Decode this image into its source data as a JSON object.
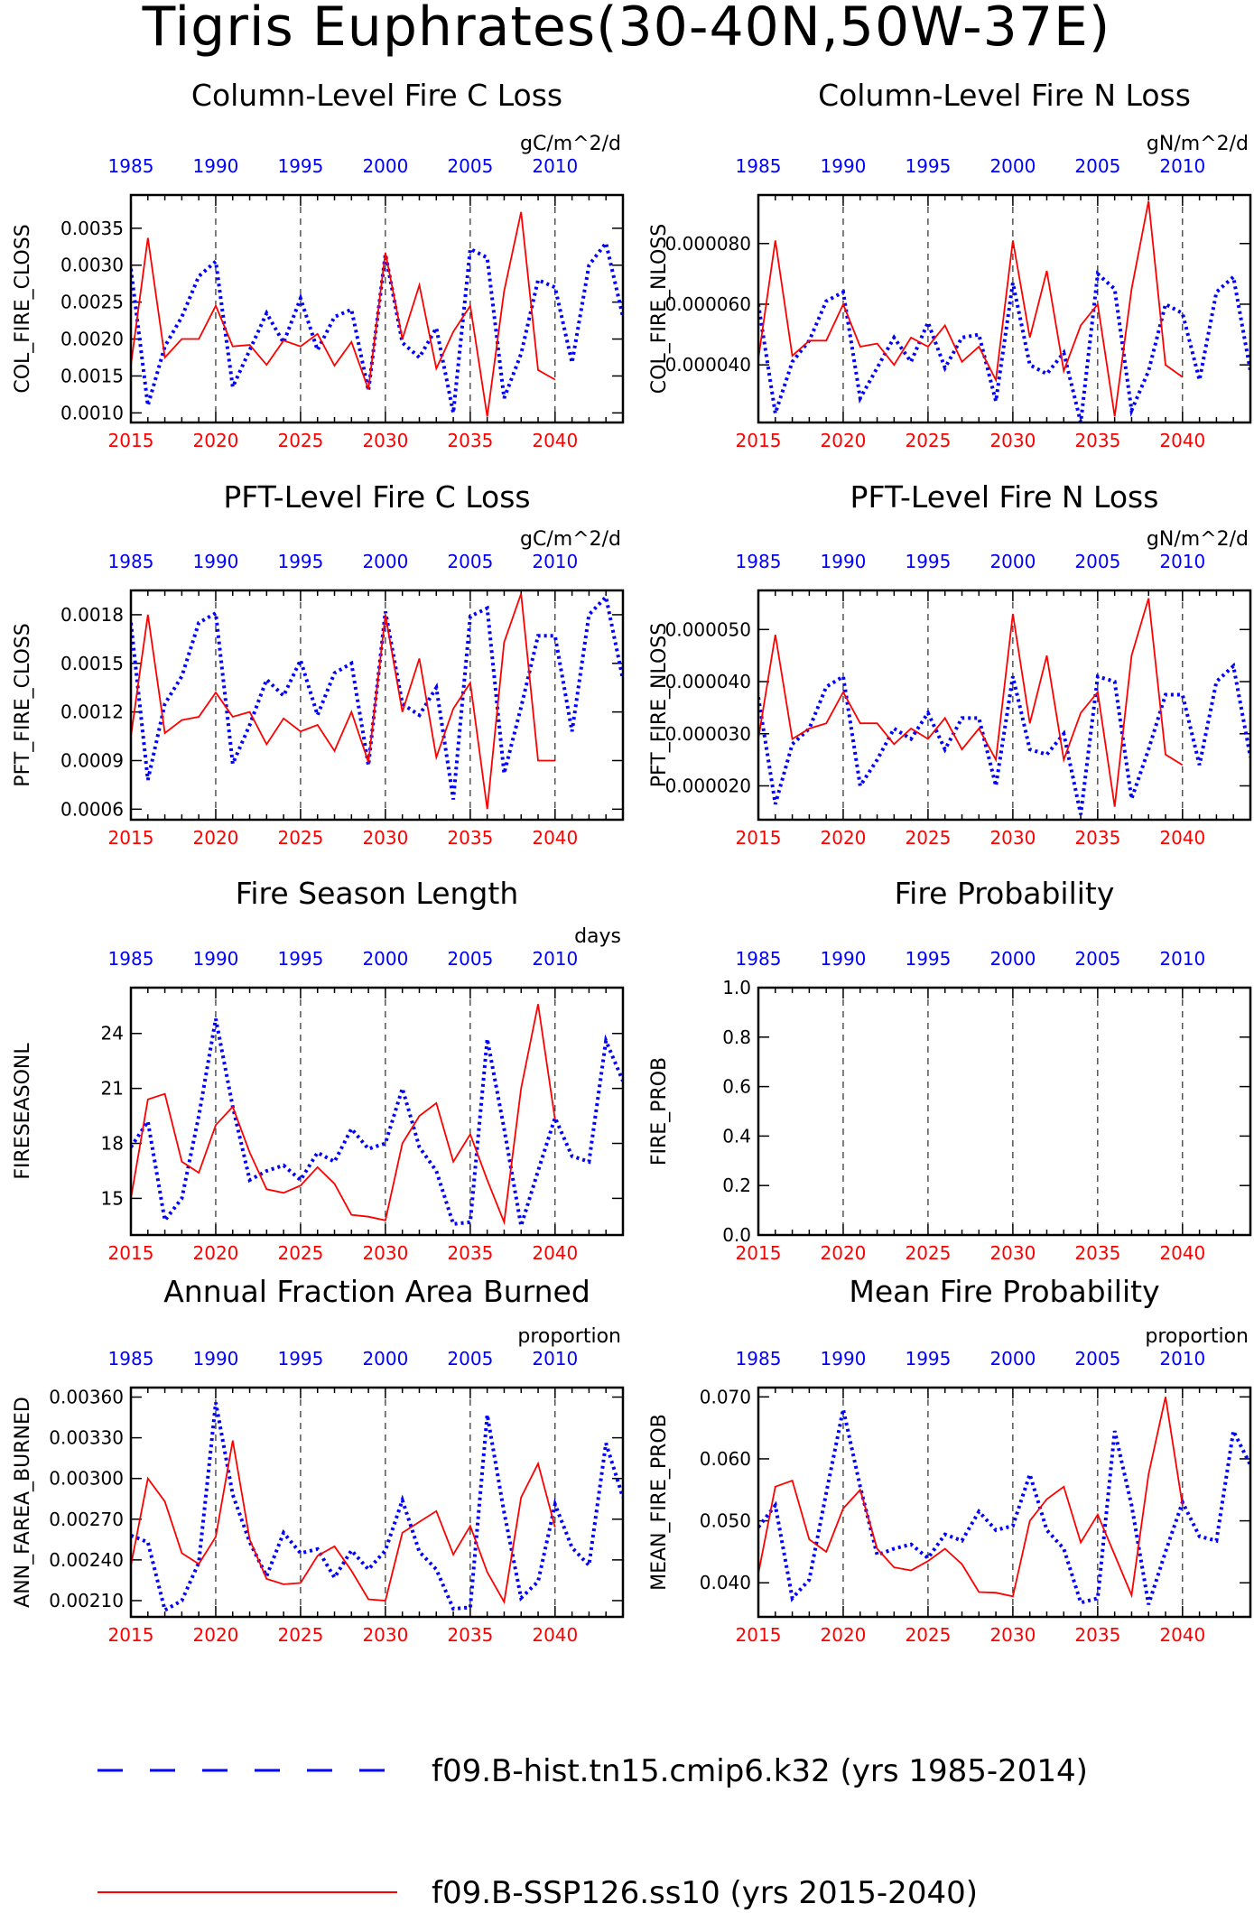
{
  "title": "Tigris Euphrates(30-40N,50W-37E)",
  "colors": {
    "hist": "#0000ff",
    "ssp": "#ff0000",
    "axis": "#000000"
  },
  "top_axis": {
    "ticks": [
      "1985",
      "1990",
      "1995",
      "2000",
      "2005",
      "2010"
    ]
  },
  "bottom_axis": {
    "ticks": [
      "2015",
      "2020",
      "2025",
      "2030",
      "2035",
      "2040"
    ]
  },
  "legend": [
    {
      "name": "f09.B-hist.tn15.cmip6.k32 (yrs 1985-2014)",
      "color": "#0000ff",
      "style": "dashed"
    },
    {
      "name": "f09.B-SSP126.ss10 (yrs 2015-2040)",
      "color": "#ff0000",
      "style": "solid"
    }
  ],
  "chart_data": [
    {
      "type": "line",
      "title": "Column-Level Fire C Loss",
      "ylabel": "COL_FIRE_CLOSS",
      "units": "gC/m^2/d",
      "ylim": [
        0.00087,
        0.00395
      ],
      "yticks": [
        "0.0010",
        "0.0015",
        "0.0020",
        "0.0025",
        "0.0030",
        "0.0035"
      ],
      "ytick_values": [
        0.001,
        0.0015,
        0.002,
        0.0025,
        0.003,
        0.0035
      ],
      "series": [
        {
          "name": "f09.B-hist.tn15.cmip6.k32 (yrs 1985-2014)",
          "x_start": 1985,
          "values": [
            0.00295,
            0.0011,
            0.0019,
            0.0023,
            0.00285,
            0.00305,
            0.00135,
            0.00185,
            0.00235,
            0.00195,
            0.00255,
            0.00185,
            0.0023,
            0.0024,
            0.0013,
            0.00315,
            0.00195,
            0.00175,
            0.00215,
            0.001,
            0.00322,
            0.0031,
            0.0012,
            0.0018,
            0.0028,
            0.0027,
            0.00168,
            0.003,
            0.0033,
            0.0023
          ]
        },
        {
          "name": "f09.B-SSP126.ss10 (yrs 2015-2040)",
          "x_start": 2015,
          "values": [
            0.00165,
            0.00337,
            0.00175,
            0.002,
            0.002,
            0.00245,
            0.0019,
            0.00192,
            0.00165,
            0.00198,
            0.0019,
            0.00207,
            0.00164,
            0.00196,
            0.00132,
            0.00317,
            0.002,
            0.00273,
            0.0016,
            0.0021,
            0.00245,
            0.00095,
            0.00265,
            0.00372,
            0.00158,
            0.00145
          ]
        }
      ]
    },
    {
      "type": "line",
      "title": "Column-Level Fire N Loss",
      "ylabel": "COL_FIRE_NLOSS",
      "units": "gN/m^2/d",
      "ylim": [
        2.1e-05,
        9.6e-05
      ],
      "yticks": [
        "0.000040",
        "0.000060",
        "0.000080"
      ],
      "ytick_values": [
        4e-05,
        6e-05,
        8e-05
      ],
      "series": [
        {
          "name": "f09.B-hist.tn15.cmip6.k32 (yrs 1985-2014)",
          "x_start": 1985,
          "values": [
            6e-05,
            2.4e-05,
            4.1e-05,
            4.8e-05,
            6.1e-05,
            6.4e-05,
            2.9e-05,
            3.9e-05,
            4.9e-05,
            4.1e-05,
            5.4e-05,
            3.9e-05,
            4.9e-05,
            5e-05,
            2.8e-05,
            6.7e-05,
            4e-05,
            3.7e-05,
            4.4e-05,
            2.1e-05,
            7e-05,
            6.5e-05,
            2.5e-05,
            3.8e-05,
            6e-05,
            5.7e-05,
            3.5e-05,
            6.4e-05,
            6.9e-05,
            3.8e-05
          ]
        },
        {
          "name": "f09.B-SSP126.ss10 (yrs 2015-2040)",
          "x_start": 2015,
          "values": [
            4.2e-05,
            8.1e-05,
            4.3e-05,
            4.8e-05,
            4.8e-05,
            6e-05,
            4.6e-05,
            4.7e-05,
            4e-05,
            4.9e-05,
            4.6e-05,
            5.3e-05,
            4.1e-05,
            4.6e-05,
            3.5e-05,
            8.1e-05,
            4.9e-05,
            7.1e-05,
            3.8e-05,
            5.3e-05,
            6e-05,
            2.3e-05,
            6.5e-05,
            9.4e-05,
            4e-05,
            3.6e-05
          ]
        }
      ]
    },
    {
      "type": "line",
      "title": "PFT-Level Fire C Loss",
      "ylabel": "PFT_FIRE_CLOSS",
      "units": "gC/m^2/d",
      "ylim": [
        0.000535,
        0.00195
      ],
      "yticks": [
        "0.0006",
        "0.0009",
        "0.0012",
        "0.0015",
        "0.0018"
      ],
      "ytick_values": [
        0.0006,
        0.0009,
        0.0012,
        0.0015,
        0.0018
      ],
      "series": [
        {
          "name": "f09.B-hist.tn15.cmip6.k32 (yrs 1985-2014)",
          "x_start": 1985,
          "values": [
            0.00175,
            0.00078,
            0.00125,
            0.00142,
            0.00175,
            0.00181,
            0.00088,
            0.00112,
            0.0014,
            0.0013,
            0.00152,
            0.00118,
            0.00144,
            0.0015,
            0.00087,
            0.00182,
            0.00125,
            0.00118,
            0.00135,
            0.00066,
            0.00179,
            0.00184,
            0.00082,
            0.00123,
            0.00167,
            0.00167,
            0.00108,
            0.0018,
            0.00191,
            0.0014
          ]
        },
        {
          "name": "f09.B-SSP126.ss10 (yrs 2015-2040)",
          "x_start": 2015,
          "values": [
            0.00105,
            0.0018,
            0.00107,
            0.00115,
            0.00117,
            0.00132,
            0.00117,
            0.0012,
            0.001,
            0.00116,
            0.00108,
            0.00112,
            0.00096,
            0.0012,
            0.00089,
            0.0018,
            0.0012,
            0.00153,
            0.00092,
            0.00122,
            0.00138,
            0.0006,
            0.00163,
            0.00193,
            0.0009,
            0.0009
          ]
        }
      ]
    },
    {
      "type": "line",
      "title": "PFT-Level Fire N Loss",
      "ylabel": "PFT_FIRE_NLOSS",
      "units": "gN/m^2/d",
      "ylim": [
        1.35e-05,
        5.75e-05
      ],
      "yticks": [
        "0.000020",
        "0.000030",
        "0.000040",
        "0.000050"
      ],
      "ytick_values": [
        2e-05,
        3e-05,
        4e-05,
        5e-05
      ],
      "series": [
        {
          "name": "f09.B-hist.tn15.cmip6.k32 (yrs 1985-2014)",
          "x_start": 1985,
          "values": [
            3.7e-05,
            1.65e-05,
            2.8e-05,
            3.1e-05,
            3.9e-05,
            4.1e-05,
            2e-05,
            2.5e-05,
            3.1e-05,
            2.9e-05,
            3.4e-05,
            2.7e-05,
            3.3e-05,
            3.3e-05,
            2e-05,
            4.1e-05,
            2.7e-05,
            2.6e-05,
            3e-05,
            1.45e-05,
            4.1e-05,
            4e-05,
            1.75e-05,
            2.7e-05,
            3.75e-05,
            3.75e-05,
            2.4e-05,
            4e-05,
            4.3e-05,
            2.55e-05
          ]
        },
        {
          "name": "f09.B-SSP126.ss10 (yrs 2015-2040)",
          "x_start": 2015,
          "values": [
            2.9e-05,
            4.9e-05,
            2.9e-05,
            3.1e-05,
            3.2e-05,
            3.8e-05,
            3.2e-05,
            3.2e-05,
            2.8e-05,
            3.1e-05,
            2.9e-05,
            3.3e-05,
            2.7e-05,
            3.1e-05,
            2.5e-05,
            5.3e-05,
            3.2e-05,
            4.5e-05,
            2.5e-05,
            3.4e-05,
            3.8e-05,
            1.6e-05,
            4.5e-05,
            5.6e-05,
            2.6e-05,
            2.4e-05
          ]
        }
      ]
    },
    {
      "type": "line",
      "title": "Fire Season Length",
      "ylabel": "FIRESEASONL",
      "units": "days",
      "ylim": [
        13.0,
        26.5
      ],
      "yticks": [
        "15",
        "18",
        "21",
        "24"
      ],
      "ytick_values": [
        15,
        18,
        21,
        24
      ],
      "series": [
        {
          "name": "f09.B-hist.tn15.cmip6.k32 (yrs 1985-2014)",
          "x_start": 1985,
          "values": [
            17.8,
            19.2,
            13.8,
            15.0,
            19.5,
            24.8,
            20.0,
            16.0,
            16.5,
            16.8,
            16.0,
            17.5,
            17.0,
            18.8,
            17.7,
            18.0,
            21.0,
            17.8,
            16.5,
            13.6,
            13.7,
            23.7,
            18.8,
            13.5,
            16.5,
            19.4,
            17.3,
            17.0,
            23.6,
            21.4
          ]
        },
        {
          "name": "f09.B-SSP126.ss10 (yrs 2015-2040)",
          "x_start": 2015,
          "values": [
            15.0,
            20.4,
            20.7,
            17.0,
            16.4,
            19.0,
            20.0,
            17.5,
            15.5,
            15.3,
            15.7,
            16.7,
            15.8,
            14.1,
            14.0,
            13.8,
            18.0,
            19.5,
            20.2,
            17.0,
            18.5,
            16.0,
            13.7,
            21.0,
            25.6,
            19.3
          ]
        }
      ]
    },
    {
      "type": "line",
      "title": "Fire Probability",
      "ylabel": "FIRE_PROB",
      "units": "",
      "ylim": [
        0.0,
        1.0
      ],
      "yticks": [
        "0.0",
        "0.2",
        "0.4",
        "0.6",
        "0.8",
        "1.0"
      ],
      "ytick_values": [
        0.0,
        0.2,
        0.4,
        0.6,
        0.8,
        1.0
      ],
      "series": []
    },
    {
      "type": "line",
      "title": "Annual Fraction Area Burned",
      "ylabel": "ANN_FAREA_BURNED",
      "units": "proportion",
      "ylim": [
        0.00198,
        0.00367
      ],
      "yticks": [
        "0.00210",
        "0.00240",
        "0.00270",
        "0.00300",
        "0.00330",
        "0.00360"
      ],
      "ytick_values": [
        0.0021,
        0.0024,
        0.0027,
        0.003,
        0.0033,
        0.0036
      ],
      "series": [
        {
          "name": "f09.B-hist.tn15.cmip6.k32 (yrs 1985-2014)",
          "x_start": 1985,
          "values": [
            0.00258,
            0.00253,
            0.00203,
            0.0021,
            0.00238,
            0.00356,
            0.00288,
            0.00253,
            0.00228,
            0.0026,
            0.00245,
            0.00248,
            0.00227,
            0.00247,
            0.00233,
            0.00247,
            0.00284,
            0.00246,
            0.00233,
            0.00204,
            0.00205,
            0.00347,
            0.00275,
            0.00212,
            0.00224,
            0.00281,
            0.00249,
            0.00236,
            0.00326,
            0.00286
          ]
        },
        {
          "name": "f09.B-SSP126.ss10 (yrs 2015-2040)",
          "x_start": 2015,
          "values": [
            0.00236,
            0.003,
            0.00283,
            0.00245,
            0.00237,
            0.00257,
            0.00328,
            0.00255,
            0.00226,
            0.00222,
            0.00223,
            0.00243,
            0.0025,
            0.00232,
            0.00211,
            0.0021,
            0.0026,
            0.00268,
            0.00276,
            0.00244,
            0.00265,
            0.00231,
            0.00209,
            0.00286,
            0.00311,
            0.00264
          ]
        }
      ]
    },
    {
      "type": "line",
      "title": "Mean Fire Probability",
      "ylabel": "MEAN_FIRE_PROB",
      "units": "proportion",
      "ylim": [
        0.0345,
        0.0715
      ],
      "yticks": [
        "0.040",
        "0.050",
        "0.060",
        "0.070"
      ],
      "ytick_values": [
        0.04,
        0.05,
        0.06,
        0.07
      ],
      "series": [
        {
          "name": "f09.B-hist.tn15.cmip6.k32 (yrs 1985-2014)",
          "x_start": 1985,
          "values": [
            0.049,
            0.0525,
            0.0375,
            0.0405,
            0.0545,
            0.068,
            0.0555,
            0.0445,
            0.0455,
            0.0462,
            0.044,
            0.0478,
            0.0468,
            0.0515,
            0.0485,
            0.0492,
            0.0575,
            0.0485,
            0.0455,
            0.0368,
            0.0375,
            0.0645,
            0.0525,
            0.0365,
            0.045,
            0.053,
            0.0475,
            0.0468,
            0.0645,
            0.059
          ]
        },
        {
          "name": "f09.B-SSP126.ss10 (yrs 2015-2040)",
          "x_start": 2015,
          "values": [
            0.0415,
            0.0555,
            0.0565,
            0.047,
            0.045,
            0.052,
            0.055,
            0.0455,
            0.0425,
            0.042,
            0.0435,
            0.0455,
            0.043,
            0.0385,
            0.0384,
            0.0378,
            0.05,
            0.0535,
            0.0555,
            0.0465,
            0.051,
            0.0445,
            0.038,
            0.0575,
            0.07,
            0.0525
          ]
        }
      ]
    }
  ]
}
